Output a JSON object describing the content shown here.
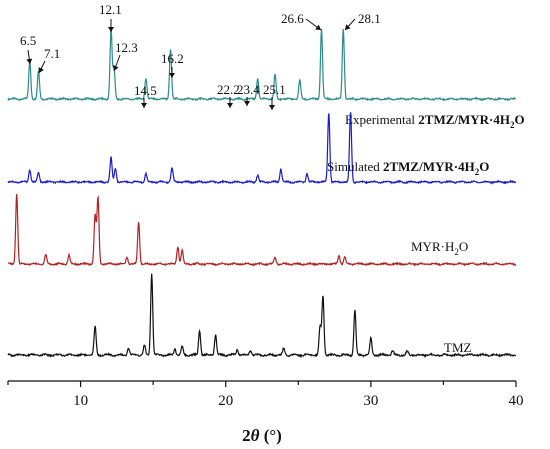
{
  "chart_data": {
    "type": "line",
    "title": "",
    "xlabel": "2θ (°)",
    "ylabel": "",
    "xlim": [
      5,
      40
    ],
    "xticks": [
      10,
      20,
      30,
      40
    ],
    "grid": false,
    "legend": "none",
    "series": [
      {
        "key": "experimental",
        "label_prefix": "Experimental ",
        "label_main": "2TMZ/MYR·4H",
        "label_sub": "2",
        "label_tail": "O",
        "color": "#2e8b8b",
        "peaks": [
          {
            "x": 6.5,
            "h": 0.55
          },
          {
            "x": 7.1,
            "h": 0.4
          },
          {
            "x": 12.1,
            "h": 1.0
          },
          {
            "x": 12.3,
            "h": 0.45
          },
          {
            "x": 14.5,
            "h": 0.3
          },
          {
            "x": 16.2,
            "h": 0.72
          },
          {
            "x": 22.2,
            "h": 0.3
          },
          {
            "x": 23.4,
            "h": 0.35
          },
          {
            "x": 25.1,
            "h": 0.27
          },
          {
            "x": 26.6,
            "h": 1.0
          },
          {
            "x": 28.1,
            "h": 1.0
          }
        ]
      },
      {
        "key": "simulated",
        "label_prefix": "Simulated ",
        "label_main": "2TMZ/MYR·4H",
        "label_sub": "2",
        "label_tail": "O",
        "color": "#1a1acc",
        "peaks": [
          {
            "x": 6.5,
            "h": 0.18
          },
          {
            "x": 7.1,
            "h": 0.13
          },
          {
            "x": 12.1,
            "h": 0.35
          },
          {
            "x": 12.4,
            "h": 0.2
          },
          {
            "x": 14.5,
            "h": 0.12
          },
          {
            "x": 16.3,
            "h": 0.2
          },
          {
            "x": 22.2,
            "h": 0.1
          },
          {
            "x": 23.8,
            "h": 0.19
          },
          {
            "x": 25.6,
            "h": 0.12
          },
          {
            "x": 27.1,
            "h": 1.0
          },
          {
            "x": 28.6,
            "h": 1.0
          }
        ]
      },
      {
        "key": "myr",
        "label_prefix": "",
        "label_main": "MYR·H",
        "label_sub": "2",
        "label_tail": "O",
        "color": "#b22222",
        "peaks": [
          {
            "x": 5.6,
            "h": 1.0
          },
          {
            "x": 7.6,
            "h": 0.13
          },
          {
            "x": 9.2,
            "h": 0.13
          },
          {
            "x": 11.0,
            "h": 0.7
          },
          {
            "x": 11.2,
            "h": 0.95
          },
          {
            "x": 13.2,
            "h": 0.1
          },
          {
            "x": 14.0,
            "h": 0.6
          },
          {
            "x": 16.7,
            "h": 0.25
          },
          {
            "x": 17.0,
            "h": 0.2
          },
          {
            "x": 23.4,
            "h": 0.1
          },
          {
            "x": 27.8,
            "h": 0.12
          },
          {
            "x": 28.2,
            "h": 0.1
          }
        ]
      },
      {
        "key": "tmz",
        "label_prefix": "",
        "label_main": "TMZ",
        "label_sub": "",
        "label_tail": "",
        "color": "#111111",
        "peaks": [
          {
            "x": 11.0,
            "h": 0.35
          },
          {
            "x": 13.3,
            "h": 0.08
          },
          {
            "x": 14.4,
            "h": 0.12
          },
          {
            "x": 14.9,
            "h": 1.0
          },
          {
            "x": 16.5,
            "h": 0.08
          },
          {
            "x": 17.0,
            "h": 0.1
          },
          {
            "x": 18.2,
            "h": 0.3
          },
          {
            "x": 19.3,
            "h": 0.25
          },
          {
            "x": 20.8,
            "h": 0.07
          },
          {
            "x": 21.7,
            "h": 0.06
          },
          {
            "x": 24.0,
            "h": 0.08
          },
          {
            "x": 26.5,
            "h": 0.35
          },
          {
            "x": 26.7,
            "h": 0.72
          },
          {
            "x": 28.9,
            "h": 0.55
          },
          {
            "x": 30.0,
            "h": 0.2
          },
          {
            "x": 31.5,
            "h": 0.05
          },
          {
            "x": 32.5,
            "h": 0.05
          }
        ]
      }
    ],
    "annotations": [
      "6.5",
      "7.1",
      "12.1",
      "12.3",
      "14.5",
      "16.2",
      "22.2",
      "23.4",
      "25.1",
      "26.6",
      "28.1"
    ]
  }
}
